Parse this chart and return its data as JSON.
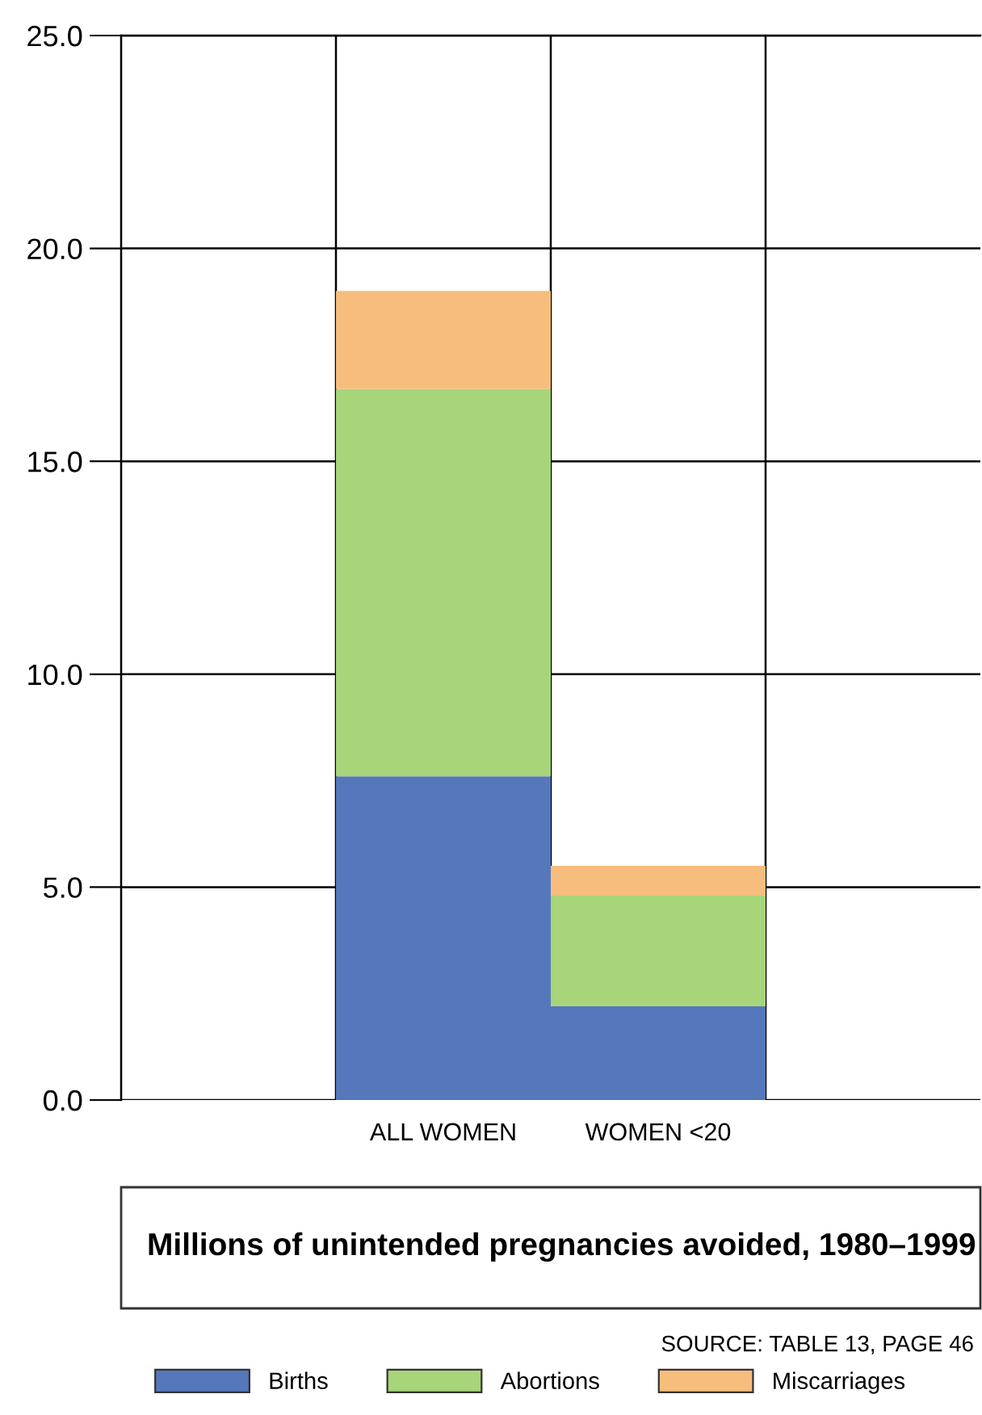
{
  "chart_data": {
    "type": "bar",
    "stacked": true,
    "title": "Millions of unintended pregnancies avoided, 1980–1999",
    "categories": [
      null,
      "ALL WOMEN",
      "WOMEN <20",
      null
    ],
    "series": [
      {
        "name": "Births",
        "color": "#5577bb",
        "values": [
          null,
          7.6,
          2.2,
          null
        ]
      },
      {
        "name": "Abortions",
        "color": "#a8d47a",
        "values": [
          null,
          9.1,
          2.6,
          null
        ]
      },
      {
        "name": "Miscarriages",
        "color": "#f7bd7c",
        "values": [
          null,
          2.3,
          0.7,
          null
        ]
      }
    ],
    "ylim": [
      0,
      25
    ],
    "yticks": [
      {
        "value": 0,
        "label": "0.0"
      },
      {
        "value": 5,
        "label": "5.0"
      },
      {
        "value": 10,
        "label": "10.0"
      },
      {
        "value": 15,
        "label": "15.0"
      },
      {
        "value": 20,
        "label": "20.0"
      },
      {
        "value": 25,
        "label": "25.0"
      }
    ],
    "grid": true,
    "legend": "bottom",
    "annotations": [
      "SOURCE: TABLE 13, PAGE 46"
    ]
  }
}
